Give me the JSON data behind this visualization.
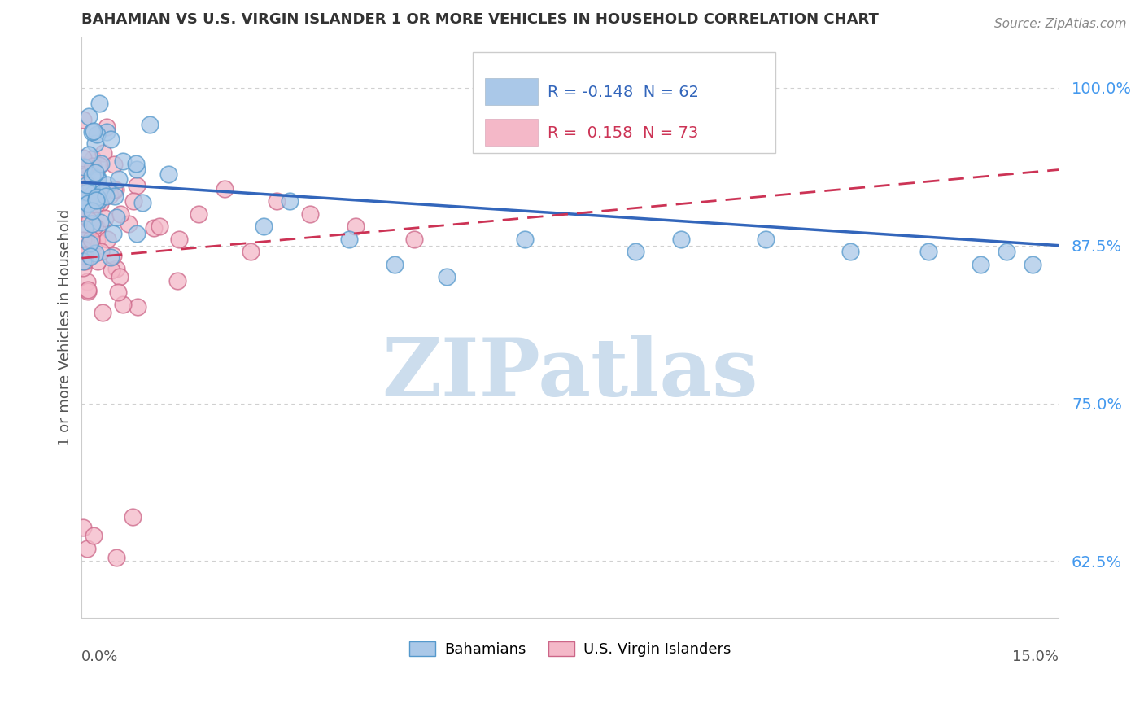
{
  "title": "BAHAMIAN VS U.S. VIRGIN ISLANDER 1 OR MORE VEHICLES IN HOUSEHOLD CORRELATION CHART",
  "source": "Source: ZipAtlas.com",
  "ylabel": "1 or more Vehicles in Household",
  "xlim": [
    0.0,
    15.0
  ],
  "ylim": [
    58.0,
    104.0
  ],
  "ytick_vals": [
    62.5,
    75.0,
    87.5,
    100.0
  ],
  "ytick_labels": [
    "62.5%",
    "75.0%",
    "87.5%",
    "100.0%"
  ],
  "bahamians": {
    "R": -0.148,
    "N": 62,
    "color": "#aac8e8",
    "edge_color": "#5599cc",
    "line_color": "#3366bb",
    "label": "Bahamians",
    "trend_x0": 0,
    "trend_y0": 92.5,
    "trend_x1": 15,
    "trend_y1": 87.5
  },
  "vi": {
    "R": 0.158,
    "N": 73,
    "color": "#f4b8c8",
    "edge_color": "#cc6688",
    "line_color": "#cc3355",
    "label": "U.S. Virgin Islanders",
    "trend_x0": 0,
    "trend_y0": 86.5,
    "trend_x1": 15,
    "trend_y1": 93.5
  },
  "background_color": "#ffffff",
  "grid_color": "#d0d0d0",
  "watermark": "ZIPatlas",
  "watermark_color": "#ccdded"
}
